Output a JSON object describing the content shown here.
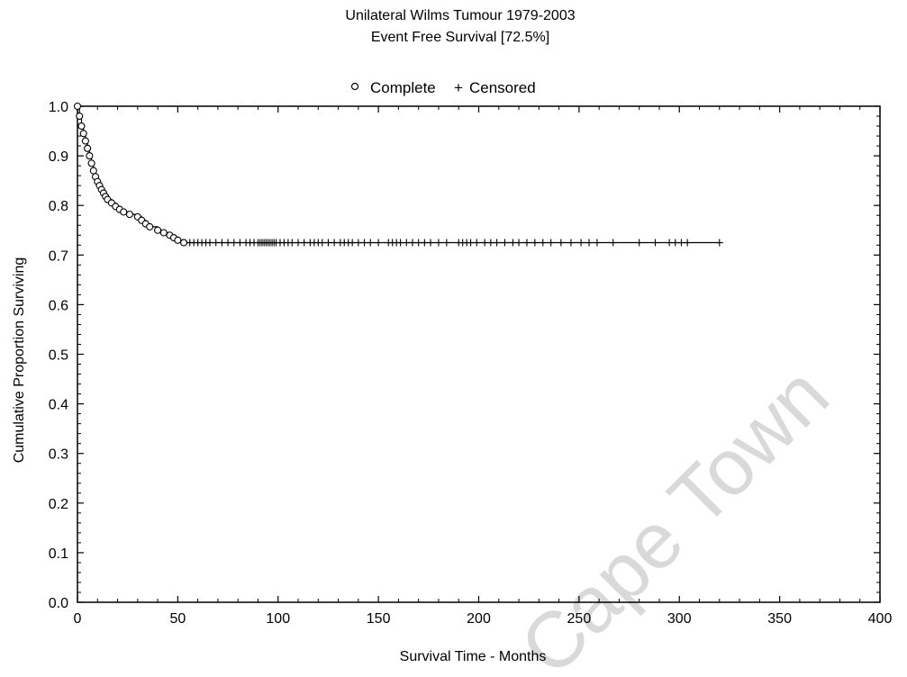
{
  "chart_data": {
    "type": "line",
    "title": "Unilateral Wilms Tumour 1979-2003",
    "subtitle": "Event Free Survival [72.5%]",
    "xlabel": "Survival Time - Months",
    "ylabel": "Cumulative Proportion Surviving",
    "xlim": [
      0,
      400
    ],
    "ylim": [
      0,
      1.0
    ],
    "x_ticks": [
      "0",
      "50",
      "100",
      "150",
      "200",
      "250",
      "300",
      "350",
      "400"
    ],
    "y_ticks": [
      "0.0",
      "0.1",
      "0.2",
      "0.3",
      "0.4",
      "0.5",
      "0.6",
      "0.7",
      "0.8",
      "0.9",
      "1.0"
    ],
    "grid": false,
    "legend": {
      "position": "top-center",
      "entries": [
        {
          "marker": "o",
          "label": "Complete"
        },
        {
          "marker": "+",
          "label": "Censored"
        }
      ]
    },
    "series": [
      {
        "name": "Complete",
        "marker": "open-circle",
        "x": [
          0,
          1,
          2,
          3,
          4,
          5,
          6,
          7,
          8,
          9,
          10,
          11,
          12,
          13,
          14,
          15,
          17,
          19,
          21,
          23,
          26,
          30,
          32,
          34,
          36,
          40,
          43,
          46,
          48,
          50,
          53
        ],
        "y": [
          1.0,
          0.98,
          0.96,
          0.945,
          0.93,
          0.915,
          0.9,
          0.885,
          0.87,
          0.858,
          0.848,
          0.84,
          0.832,
          0.825,
          0.818,
          0.812,
          0.805,
          0.798,
          0.792,
          0.787,
          0.782,
          0.777,
          0.77,
          0.763,
          0.757,
          0.75,
          0.745,
          0.74,
          0.735,
          0.73,
          0.725
        ]
      },
      {
        "name": "Censored",
        "marker": "plus",
        "x": [
          56,
          58,
          60,
          62,
          64,
          66,
          69,
          72,
          75,
          78,
          81,
          84,
          86,
          88,
          90,
          91,
          92,
          93,
          94,
          95,
          96,
          97,
          98,
          99,
          101,
          103,
          105,
          107,
          110,
          113,
          116,
          118,
          120,
          122,
          125,
          128,
          131,
          133,
          135,
          137,
          140,
          143,
          146,
          150,
          155,
          157,
          159,
          161,
          164,
          167,
          170,
          173,
          176,
          180,
          184,
          190,
          192,
          194,
          196,
          199,
          203,
          206,
          209,
          213,
          217,
          220,
          224,
          228,
          232,
          236,
          241,
          246,
          251,
          255,
          259,
          267,
          280,
          288,
          295,
          298,
          301,
          304,
          320
        ],
        "y_constant": 0.725
      }
    ]
  },
  "watermark": "Cape Town"
}
